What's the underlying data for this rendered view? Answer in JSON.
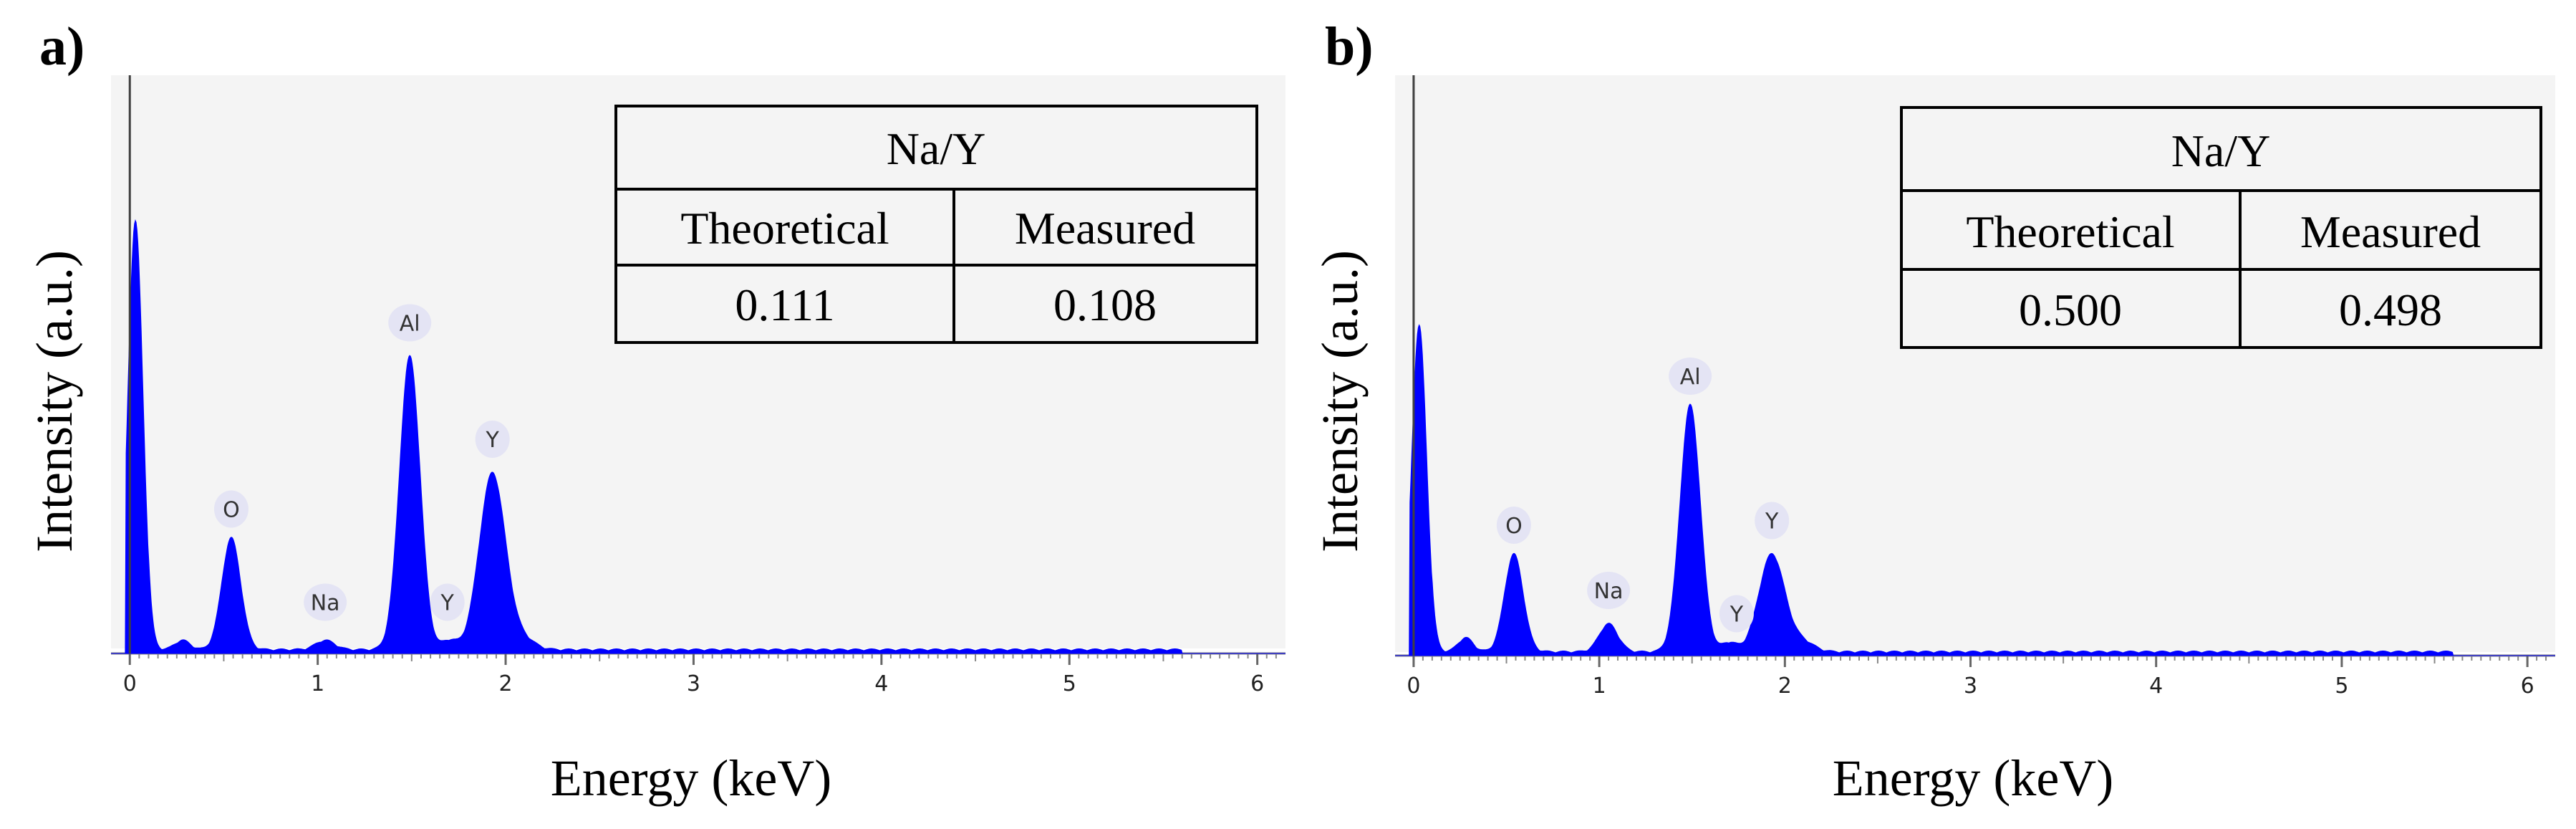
{
  "chart_data": [
    {
      "type": "area",
      "panel_label": "a)",
      "xlabel": "Energy (keV)",
      "ylabel": "Intensity (a.u.)",
      "xlim": [
        -0.1,
        6.15
      ],
      "ylim": [
        0,
        1.0
      ],
      "x_ticks": [
        0,
        1,
        2,
        3,
        4,
        5,
        6
      ],
      "fill_color": "#0000ff",
      "peaks": [
        {
          "center": 0.03,
          "height": 0.93,
          "width": 0.04
        },
        {
          "center": 0.28,
          "height": 0.02,
          "width": 0.04
        },
        {
          "center": 0.54,
          "height": 0.24,
          "width": 0.05
        },
        {
          "center": 1.04,
          "height": 0.02,
          "width": 0.05
        },
        {
          "center": 1.49,
          "height": 0.63,
          "width": 0.055
        },
        {
          "center": 1.7,
          "height": 0.02,
          "width": 0.04
        },
        {
          "center": 1.93,
          "height": 0.38,
          "width": 0.07
        },
        {
          "center": 2.1,
          "height": 0.02,
          "width": 0.06
        }
      ],
      "peak_labels": [
        {
          "text": "O",
          "x": 0.54,
          "y": 0.31
        },
        {
          "text": "Na",
          "x": 1.04,
          "y": 0.11
        },
        {
          "text": "Al",
          "x": 1.49,
          "y": 0.71
        },
        {
          "text": "Y",
          "x": 1.69,
          "y": 0.11
        },
        {
          "text": "Y",
          "x": 1.93,
          "y": 0.46
        }
      ],
      "inset_table": {
        "title": "Na/Y",
        "headers": [
          "Theoretical",
          "Measured"
        ],
        "values": [
          "0.111",
          "0.108"
        ]
      }
    },
    {
      "type": "area",
      "panel_label": "b)",
      "xlabel": "Energy (keV)",
      "ylabel": "Intensity (a.u.)",
      "xlim": [
        -0.1,
        6.15
      ],
      "ylim": [
        0,
        1.0
      ],
      "x_ticks": [
        0,
        1,
        2,
        3,
        4,
        5,
        6
      ],
      "fill_color": "#0000ff",
      "peaks": [
        {
          "center": 0.03,
          "height": 0.71,
          "width": 0.04
        },
        {
          "center": 0.28,
          "height": 0.03,
          "width": 0.04
        },
        {
          "center": 0.54,
          "height": 0.21,
          "width": 0.05
        },
        {
          "center": 1.05,
          "height": 0.06,
          "width": 0.05
        },
        {
          "center": 1.49,
          "height": 0.53,
          "width": 0.055
        },
        {
          "center": 1.7,
          "height": 0.02,
          "width": 0.04
        },
        {
          "center": 1.93,
          "height": 0.21,
          "width": 0.07
        },
        {
          "center": 2.1,
          "height": 0.02,
          "width": 0.06
        }
      ],
      "peak_labels": [
        {
          "text": "O",
          "x": 0.54,
          "y": 0.28
        },
        {
          "text": "Na",
          "x": 1.05,
          "y": 0.14
        },
        {
          "text": "Al",
          "x": 1.49,
          "y": 0.6
        },
        {
          "text": "Y",
          "x": 1.74,
          "y": 0.09
        },
        {
          "text": "Y",
          "x": 1.93,
          "y": 0.29
        }
      ],
      "inset_table": {
        "title": "Na/Y",
        "headers": [
          "Theoretical",
          "Measured"
        ],
        "values": [
          "0.500",
          "0.498"
        ]
      }
    }
  ]
}
